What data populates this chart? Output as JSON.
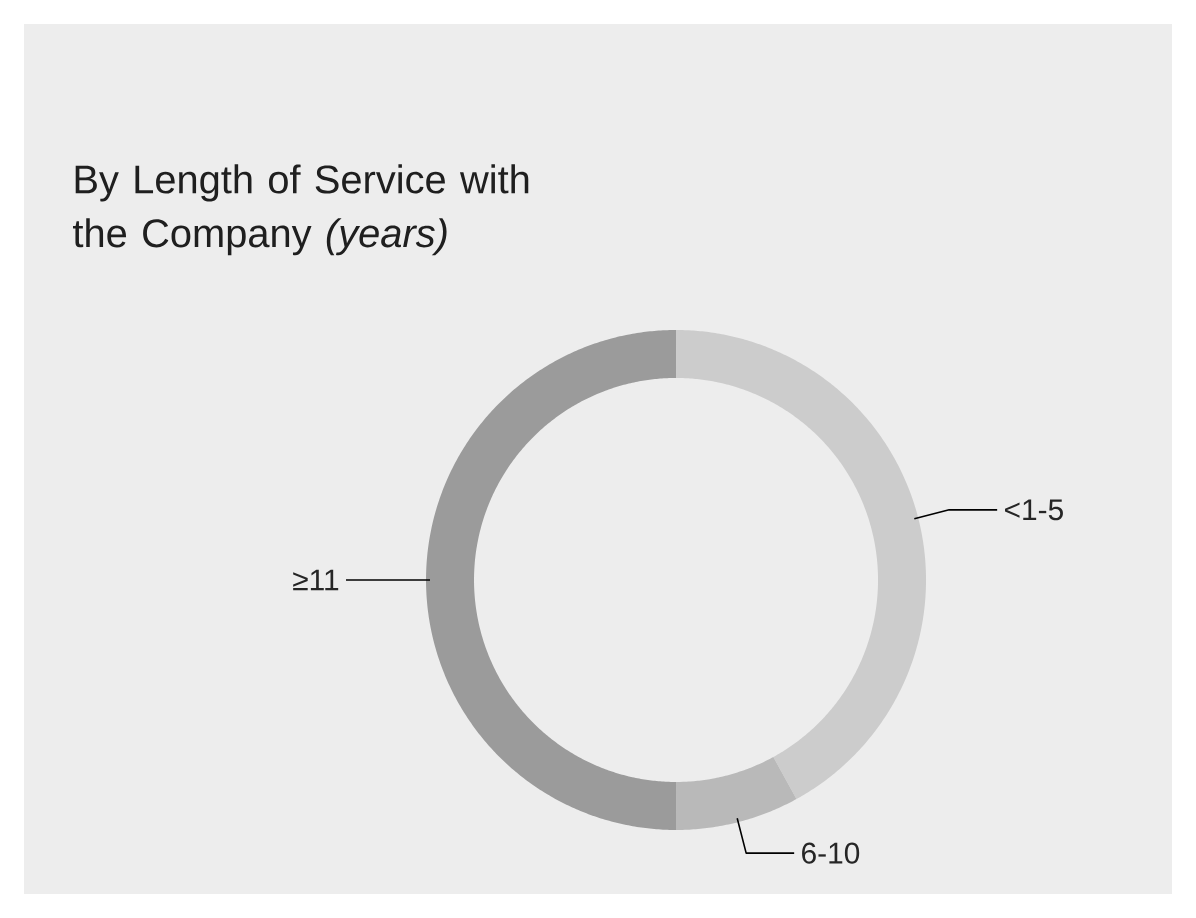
{
  "chart_data": {
    "type": "donut",
    "title": "By Length of Service with the Company *(years)*",
    "categories": [
      "<1-5",
      "6-10",
      "≥11"
    ],
    "values": [
      42,
      8,
      50
    ],
    "colors": [
      "#cccccc",
      "#b9b9b9",
      "#9b9b9b"
    ]
  }
}
